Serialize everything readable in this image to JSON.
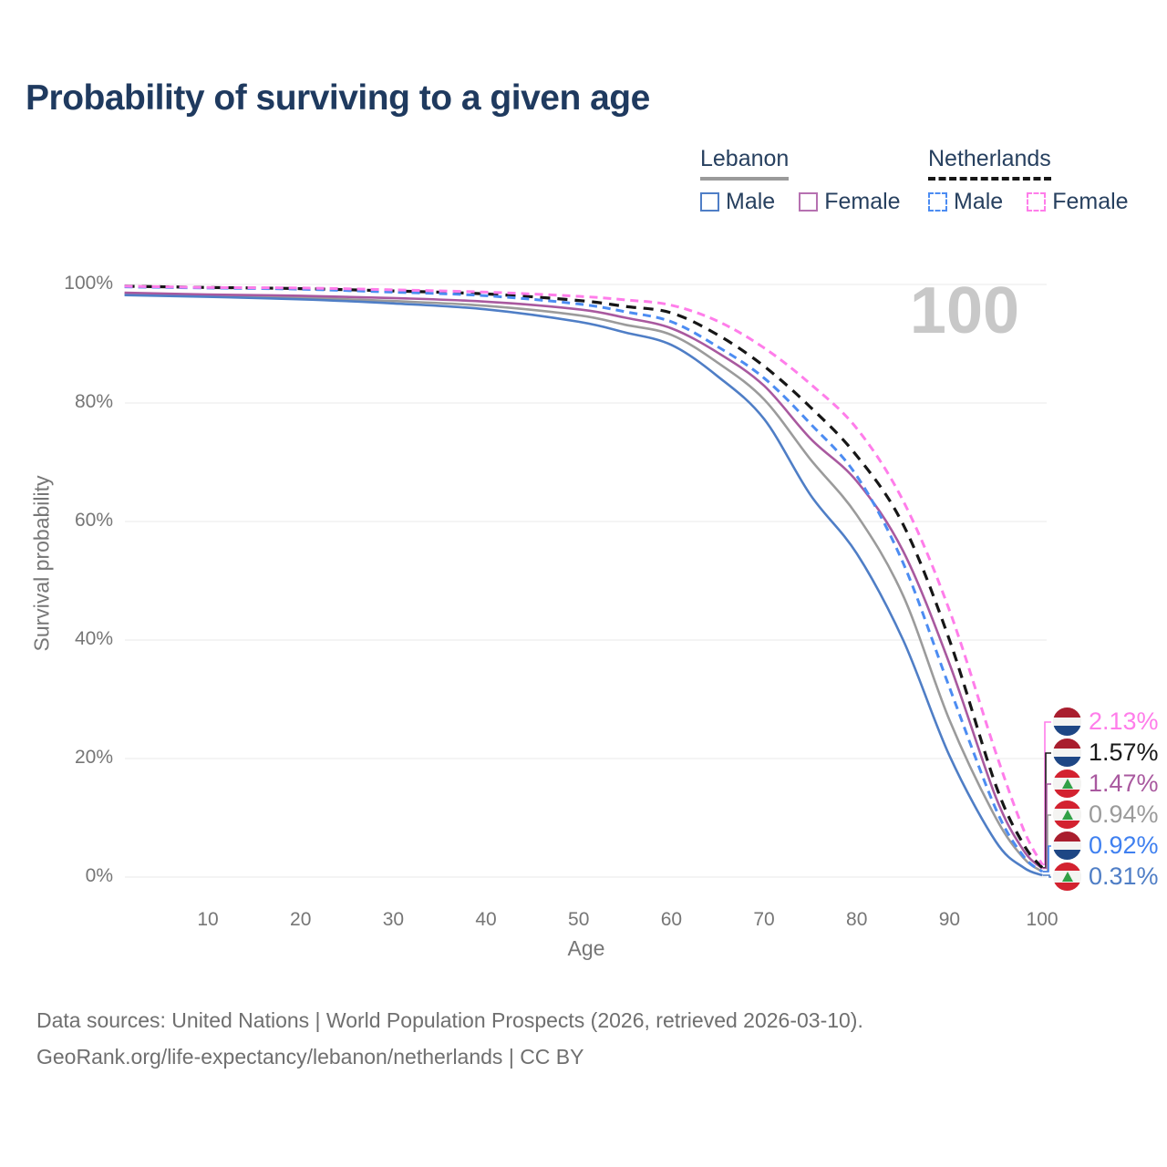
{
  "title": "Probability of surviving to a given age",
  "watermark_age": "100",
  "legend": {
    "groups": [
      {
        "label": "Lebanon",
        "line_style": "solid",
        "underline_color": "#9a9a9a",
        "items": [
          {
            "label": "Male",
            "color": "#4f7ec6",
            "dashed": false
          },
          {
            "label": "Female",
            "color": "#b671b1",
            "dashed": false
          }
        ]
      },
      {
        "label": "Netherlands",
        "line_style": "dashed",
        "underline_color": "#161616",
        "items": [
          {
            "label": "Male",
            "color": "#4c8cf2",
            "dashed": true
          },
          {
            "label": "Female",
            "color": "#ff7dea",
            "dashed": true
          }
        ]
      }
    ]
  },
  "chart_data": {
    "type": "line",
    "title": "Probability of surviving to a given age",
    "xlabel": "Age",
    "ylabel": "Survival probability",
    "xlim": [
      1,
      100
    ],
    "ylim": [
      0,
      100
    ],
    "grid": "horizontal",
    "legend_position": "top-right",
    "x_ticks": [
      10,
      20,
      30,
      40,
      50,
      60,
      70,
      80,
      90,
      100
    ],
    "y_ticks": [
      {
        "value": 0,
        "label": "0%"
      },
      {
        "value": 20,
        "label": "20%"
      },
      {
        "value": 40,
        "label": "40%"
      },
      {
        "value": 60,
        "label": "60%"
      },
      {
        "value": 80,
        "label": "80%"
      },
      {
        "value": 100,
        "label": "100%"
      }
    ],
    "ages": [
      1,
      10,
      20,
      30,
      40,
      50,
      55,
      60,
      65,
      70,
      75,
      80,
      85,
      90,
      95,
      98,
      100
    ],
    "series": [
      {
        "name": "Lebanon",
        "country": "Lebanon",
        "sex": "Both",
        "color": "#9b9b9b",
        "dash": null,
        "width": 2.6,
        "values": [
          98.4,
          98.1,
          97.8,
          97.2,
          96.4,
          94.8,
          93.2,
          91.5,
          86.8,
          80.6,
          70.5,
          61.1,
          47.5,
          26.5,
          10.0,
          3.2,
          0.94
        ]
      },
      {
        "name": "Lebanon Female",
        "country": "Lebanon",
        "sex": "Female",
        "color": "#a9599f",
        "dash": null,
        "width": 2.6,
        "values": [
          98.6,
          98.3,
          98.1,
          97.7,
          97.1,
          95.8,
          94.4,
          92.6,
          88.5,
          82.9,
          74.0,
          66.8,
          55.0,
          36.0,
          13.5,
          4.5,
          1.47
        ]
      },
      {
        "name": "Lebanon Male",
        "country": "Lebanon",
        "sex": "Male",
        "color": "#4f7ec6",
        "dash": null,
        "width": 2.6,
        "values": [
          98.2,
          97.9,
          97.5,
          96.8,
          95.8,
          93.7,
          91.9,
          89.8,
          84.5,
          77.3,
          64.5,
          54.6,
          40.0,
          20.5,
          6.0,
          1.6,
          0.31
        ]
      },
      {
        "name": "Netherlands",
        "country": "Netherlands",
        "sex": "Both",
        "color": "#161616",
        "dash": "11 8",
        "width": 3.2,
        "values": [
          99.7,
          99.5,
          99.3,
          98.9,
          98.4,
          97.3,
          96.3,
          95.2,
          91.5,
          86.2,
          79.3,
          71.1,
          59.5,
          40.0,
          15.5,
          5.5,
          1.57
        ]
      },
      {
        "name": "Netherlands Male",
        "country": "Netherlands",
        "sex": "Male",
        "color": "#4c8cf2",
        "dash": "9 6",
        "width": 3.0,
        "values": [
          99.6,
          99.4,
          99.2,
          98.7,
          98.1,
          96.7,
          95.4,
          93.7,
          89.5,
          84.2,
          76.5,
          67.7,
          53.0,
          32.0,
          11.5,
          3.5,
          0.92
        ]
      },
      {
        "name": "Netherlands Female",
        "country": "Netherlands",
        "sex": "Female",
        "color": "#ff7dea",
        "dash": "9 6",
        "width": 3.0,
        "values": [
          99.7,
          99.5,
          99.4,
          99.1,
          98.7,
          98.0,
          97.4,
          96.5,
          93.8,
          89.3,
          83.2,
          75.7,
          63.5,
          45.0,
          21.0,
          8.0,
          2.13
        ]
      }
    ],
    "end_labels": [
      {
        "label": "2.13%",
        "value": 2.13,
        "series": "Netherlands Female",
        "flag": "nl",
        "color": "#ff7dea"
      },
      {
        "label": "1.57%",
        "value": 1.57,
        "series": "Netherlands",
        "flag": "nl",
        "color": "#1a1a1a"
      },
      {
        "label": "1.47%",
        "value": 1.47,
        "series": "Lebanon Female",
        "flag": "lb",
        "color": "#a9599f"
      },
      {
        "label": "0.94%",
        "value": 0.94,
        "series": "Lebanon",
        "flag": "lb",
        "color": "#9b9b9b"
      },
      {
        "label": "0.92%",
        "value": 0.92,
        "series": "Netherlands Male",
        "flag": "nl",
        "color": "#3f80f0"
      },
      {
        "label": "0.31%",
        "value": 0.31,
        "series": "Lebanon Male",
        "flag": "lb",
        "color": "#4f7ec6"
      }
    ]
  },
  "footer": {
    "line1": "Data sources: United Nations | World Population Prospects (2026, retrieved 2026-03-10).",
    "line2": "GeoRank.org/life-expectancy/lebanon/netherlands | CC BY"
  }
}
